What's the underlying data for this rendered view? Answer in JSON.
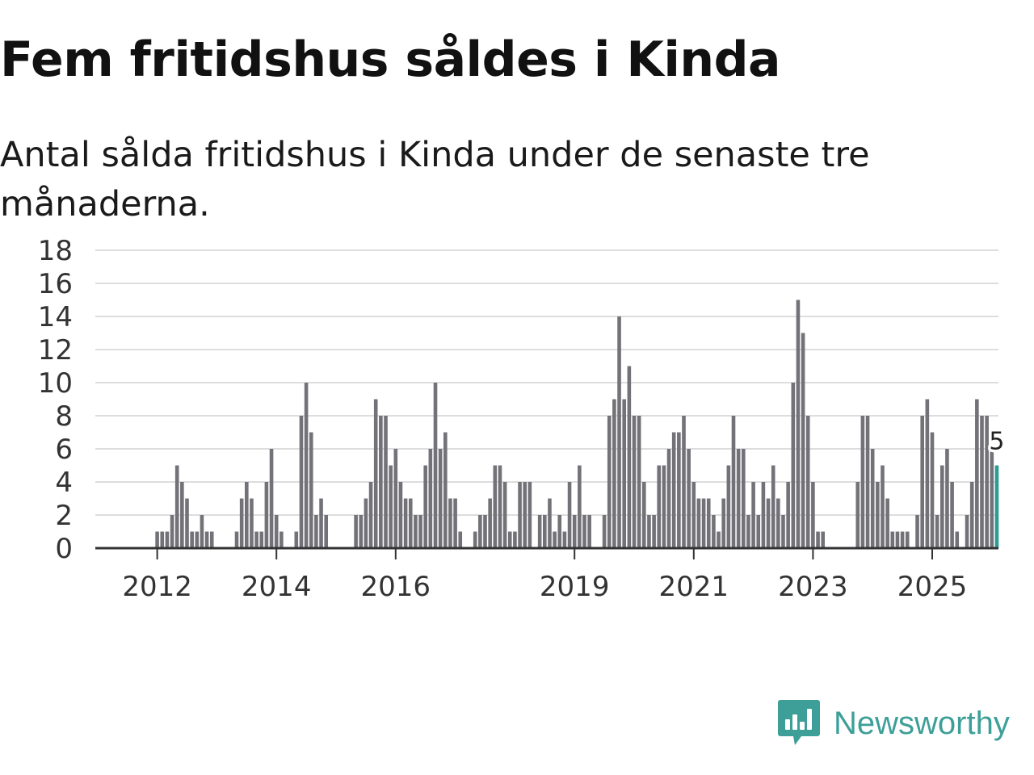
{
  "header": {
    "title": "Fem fritidshus såldes i Kinda",
    "subtitle": "Antal sålda fritidshus i Kinda under de senaste tre månaderna."
  },
  "brand": {
    "name": "Newsworthy",
    "logo": "newsworthy-logo-icon"
  },
  "colors": {
    "bar": "#737278",
    "highlight": "#2c9b94",
    "grid": "#dddddd",
    "axis": "#333333",
    "brand": "#3e9f98"
  },
  "chart_data": {
    "type": "bar",
    "title": "Fem fritidshus såldes i Kinda",
    "subtitle": "Antal sålda fritidshus i Kinda under de senaste tre månaderna.",
    "xlabel": "",
    "ylabel": "",
    "ylim": [
      0,
      18
    ],
    "yticks": [
      0,
      2,
      4,
      6,
      8,
      10,
      12,
      14,
      16,
      18
    ],
    "grid": true,
    "x_start": {
      "year": 2011,
      "month": 1
    },
    "xticks": [
      {
        "label": "2012",
        "year": 2012
      },
      {
        "label": "2014",
        "year": 2014
      },
      {
        "label": "2016",
        "year": 2016
      },
      {
        "label": "2019",
        "year": 2019
      },
      {
        "label": "2021",
        "year": 2021
      },
      {
        "label": "2023",
        "year": 2023
      },
      {
        "label": "2025",
        "year": 2025
      }
    ],
    "values": [
      0,
      0,
      0,
      0,
      0,
      0,
      0,
      0,
      0,
      0,
      0,
      0,
      1,
      1,
      1,
      2,
      5,
      4,
      3,
      1,
      1,
      2,
      1,
      1,
      0,
      0,
      0,
      0,
      1,
      3,
      4,
      3,
      1,
      1,
      4,
      6,
      2,
      1,
      0,
      0,
      1,
      8,
      10,
      7,
      2,
      3,
      2,
      0,
      0,
      0,
      0,
      0,
      2,
      2,
      3,
      4,
      9,
      8,
      8,
      5,
      6,
      4,
      3,
      3,
      2,
      2,
      5,
      6,
      10,
      6,
      7,
      3,
      3,
      1,
      0,
      0,
      1,
      2,
      2,
      3,
      5,
      5,
      4,
      1,
      1,
      4,
      4,
      4,
      0,
      2,
      2,
      3,
      1,
      2,
      1,
      4,
      2,
      5,
      2,
      2,
      0,
      0,
      2,
      8,
      9,
      14,
      9,
      11,
      8,
      8,
      4,
      2,
      2,
      5,
      5,
      6,
      7,
      7,
      8,
      6,
      4,
      3,
      3,
      3,
      2,
      1,
      3,
      5,
      8,
      6,
      6,
      2,
      4,
      2,
      4,
      3,
      5,
      3,
      2,
      4,
      10,
      15,
      13,
      8,
      4,
      1,
      1,
      0,
      0,
      0,
      0,
      0,
      0,
      4,
      8,
      8,
      6,
      4,
      5,
      3,
      1,
      1,
      1,
      1,
      0,
      2,
      8,
      9,
      7,
      2,
      5,
      6,
      4,
      1,
      0,
      2,
      4,
      9,
      8,
      8,
      6,
      5
    ],
    "highlight_last": true,
    "annotations": [
      {
        "text": "5",
        "target": "last-bar",
        "value": 5
      }
    ]
  }
}
